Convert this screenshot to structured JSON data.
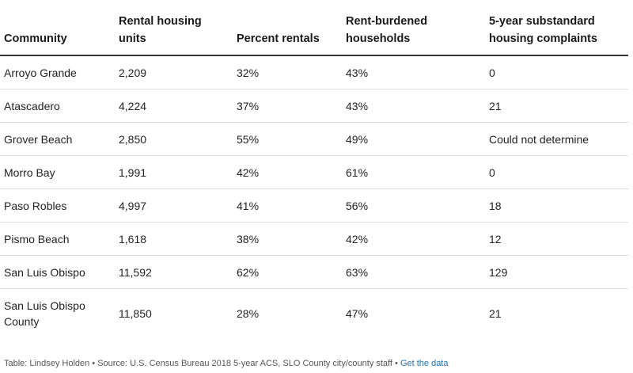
{
  "table": {
    "headers": [
      "Community",
      "Rental housing units",
      "Percent rentals",
      "Rent-burdened households",
      "5-year substandard housing complaints"
    ],
    "rows": [
      [
        "Arroyo Grande",
        "2,209",
        "32%",
        "43%",
        "0"
      ],
      [
        "Atascadero",
        "4,224",
        "37%",
        "43%",
        "21"
      ],
      [
        "Grover Beach",
        "2,850",
        "55%",
        "49%",
        "Could not determine"
      ],
      [
        "Morro Bay",
        "1,991",
        "42%",
        "61%",
        "0"
      ],
      [
        "Paso Robles",
        "4,997",
        "41%",
        "56%",
        "18"
      ],
      [
        "Pismo Beach",
        "1,618",
        "38%",
        "42%",
        "12"
      ],
      [
        "San Luis Obispo",
        "11,592",
        "62%",
        "63%",
        "129"
      ],
      [
        "San Luis Obispo County",
        "11,850",
        "28%",
        "47%",
        "21"
      ]
    ]
  },
  "footer": {
    "credit": "Table: Lindsey Holden • Source: U.S. Census Bureau 2018 5-year ACS, SLO County city/county staff • ",
    "link_label": "Get the data"
  },
  "colors": {
    "text": "#222222",
    "header_rule": "#333333",
    "row_rule": "#dddddd",
    "link": "#1f6fb2"
  }
}
